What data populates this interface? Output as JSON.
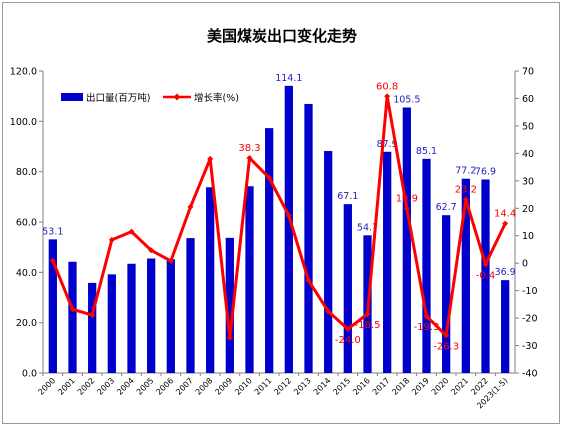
{
  "chart_data": {
    "type": "bar",
    "title": "美国煤炭出口变化走势",
    "categories": [
      "2000",
      "2001",
      "2002",
      "2003",
      "2004",
      "2005",
      "2006",
      "2007",
      "2008",
      "2009",
      "2010",
      "2011",
      "2012",
      "2013",
      "2014",
      "2015",
      "2016",
      "2017",
      "2018",
      "2019",
      "2020",
      "2021",
      "2022",
      "2023(1-5)"
    ],
    "series": [
      {
        "name": "出口量(百万吨)",
        "type": "bar",
        "axis": "left",
        "color": "#0000cc",
        "values": [
          53.1,
          44.2,
          35.8,
          39.2,
          43.4,
          45.5,
          45.2,
          53.6,
          73.8,
          53.7,
          74.2,
          97.3,
          114.1,
          106.9,
          88.2,
          67.1,
          54.7,
          87.9,
          105.5,
          85.1,
          62.7,
          77.2,
          76.9,
          36.9
        ],
        "labels": {
          "2000": "53.1",
          "2012": "114.1",
          "2015": "67.1",
          "2016": "54.7",
          "2017": "87.9",
          "2018": "105.5",
          "2019": "85.1",
          "2020": "62.7",
          "2021": "77.2",
          "2022": "76.9",
          "2023(1-5)": "36.9"
        }
      },
      {
        "name": "增长率(%)",
        "type": "line",
        "axis": "right",
        "color": "#ff0000",
        "values": [
          0.9,
          -16.8,
          -18.9,
          8.5,
          11.5,
          4.7,
          0.8,
          20.5,
          38.0,
          -27.2,
          38.3,
          31.1,
          17.3,
          -6.3,
          -17.5,
          -24.0,
          -18.5,
          60.8,
          19.9,
          -19.3,
          -26.3,
          23.2,
          -0.4,
          14.4
        ],
        "labels": {
          "2010": "38.3",
          "2015": "-24.0",
          "2016": "-18.5",
          "2017": "60.8",
          "2018": "19.9",
          "2019": "-19.3",
          "2020": "-26.3",
          "2021": "23.2",
          "2022": "-0.4",
          "2023(1-5)": "14.4"
        }
      }
    ],
    "y_left": {
      "min": 0,
      "max": 120,
      "step": 20,
      "ticks": [
        "0.0",
        "20.0",
        "40.0",
        "60.0",
        "80.0",
        "100.0",
        "120.0"
      ]
    },
    "y_right": {
      "min": -40,
      "max": 70,
      "step": 10,
      "ticks": [
        "-40",
        "-30",
        "-20",
        "-10",
        "0",
        "10",
        "20",
        "30",
        "40",
        "50",
        "60",
        "70"
      ]
    },
    "grid": false,
    "legend_position": "top-left"
  }
}
